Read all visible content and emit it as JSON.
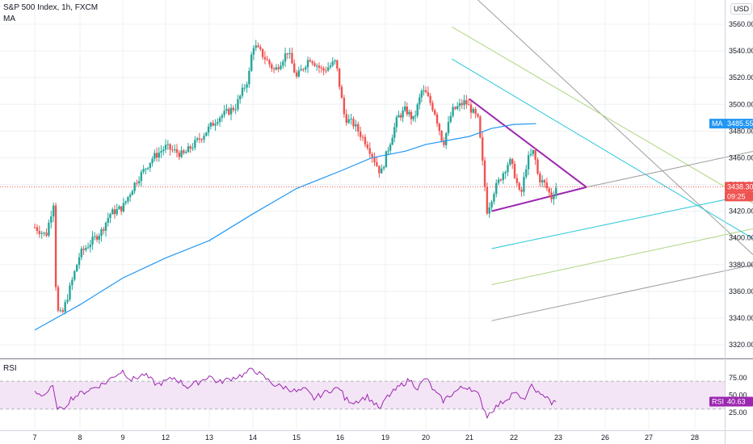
{
  "header": {
    "title": "S&P 500 Index, 1h, FXCM",
    "ma_label": "MA",
    "rsi_label": "RSI",
    "currency": "USD"
  },
  "colors": {
    "bull": "#26a69a",
    "bear": "#ef5350",
    "ma": "#2196f3",
    "rsi": "#9c27b0",
    "rsi_band": "#f3e5f5",
    "triangle": "#9c27b0",
    "ch_gray": "#9e9e9e",
    "ch_lime": "#aed581",
    "ch_teal": "#26c6da",
    "price_tag": "#ef5350",
    "ma_tag": "#2196f3"
  },
  "chart_data": [
    {
      "type": "candlestick",
      "title": "S&P 500 Index, 1h, FXCM",
      "x_axis": {
        "ticks": [
          "7",
          "8",
          "9",
          "12",
          "13",
          "14",
          "15",
          "16",
          "19",
          "20",
          "21",
          "22",
          "23",
          "26",
          "27",
          "28"
        ]
      },
      "y_axis": {
        "ticks": [
          3320,
          3340,
          3360,
          3380,
          3400,
          3420,
          3440,
          3460,
          3480,
          3500,
          3520,
          3540,
          3560
        ],
        "range": [
          3313,
          3578
        ]
      },
      "price_path": [
        [
          0.0,
          3408
        ],
        [
          0.25,
          3402
        ],
        [
          0.45,
          3432
        ],
        [
          0.47,
          3346
        ],
        [
          0.6,
          3342
        ],
        [
          0.8,
          3365
        ],
        [
          1.0,
          3388
        ],
        [
          1.2,
          3395
        ],
        [
          1.5,
          3405
        ],
        [
          1.7,
          3418
        ],
        [
          2.0,
          3423
        ],
        [
          2.3,
          3442
        ],
        [
          2.7,
          3460
        ],
        [
          3.0,
          3468
        ],
        [
          3.4,
          3462
        ],
        [
          3.8,
          3475
        ],
        [
          4.2,
          3490
        ],
        [
          4.6,
          3498
        ],
        [
          4.9,
          3520
        ],
        [
          5.0,
          3545
        ],
        [
          5.2,
          3538
        ],
        [
          5.5,
          3525
        ],
        [
          5.8,
          3540
        ],
        [
          6.0,
          3520
        ],
        [
          6.3,
          3535
        ],
        [
          6.6,
          3525
        ],
        [
          6.9,
          3532
        ],
        [
          7.1,
          3490
        ],
        [
          7.3,
          3485
        ],
        [
          7.6,
          3470
        ],
        [
          7.9,
          3448
        ],
        [
          8.0,
          3460
        ],
        [
          8.3,
          3490
        ],
        [
          8.5,
          3496
        ],
        [
          8.7,
          3488
        ],
        [
          8.9,
          3510
        ],
        [
          9.0,
          3508
        ],
        [
          9.2,
          3495
        ],
        [
          9.4,
          3470
        ],
        [
          9.6,
          3495
        ],
        [
          9.9,
          3502
        ],
        [
          10.0,
          3498
        ],
        [
          10.2,
          3488
        ],
        [
          10.4,
          3420
        ],
        [
          10.55,
          3435
        ],
        [
          10.7,
          3445
        ],
        [
          10.9,
          3458
        ],
        [
          11.0,
          3450
        ],
        [
          11.15,
          3430
        ],
        [
          11.3,
          3458
        ],
        [
          11.45,
          3465
        ],
        [
          11.55,
          3445
        ],
        [
          11.7,
          3440
        ],
        [
          11.85,
          3430
        ],
        [
          11.95,
          3438
        ]
      ],
      "candle_count": 232,
      "last_price": "3438.30",
      "countdown": "09:25",
      "ma": {
        "label": "MA",
        "last_value": "3485.55",
        "points": [
          [
            0.0,
            3331
          ],
          [
            1.0,
            3350
          ],
          [
            2.0,
            3370
          ],
          [
            3.0,
            3385
          ],
          [
            4.0,
            3398
          ],
          [
            5.0,
            3418
          ],
          [
            6.0,
            3437
          ],
          [
            7.0,
            3450
          ],
          [
            7.7,
            3460
          ],
          [
            8.5,
            3465
          ],
          [
            9.0,
            3470
          ],
          [
            10.0,
            3476
          ],
          [
            10.5,
            3482
          ],
          [
            11.0,
            3485
          ],
          [
            11.5,
            3485.55
          ]
        ]
      },
      "drawings": {
        "triangle_upper": [
          [
            10.0,
            3504
          ],
          [
            12.6,
            3438
          ]
        ],
        "triangle_lower": [
          [
            10.5,
            3420
          ],
          [
            12.6,
            3438
          ]
        ],
        "triangle_extension": [
          [
            12.6,
            3438
          ],
          [
            17.5,
            3474
          ]
        ],
        "channel_up": [
          [
            10.5,
            3392,
            17.5,
            3442
          ],
          [
            10.5,
            3365,
            17.5,
            3416
          ],
          [
            10.5,
            3338,
            17.5,
            3389
          ]
        ],
        "channel_down": [
          [
            10.0,
            3584,
            17.5,
            3348
          ],
          [
            9.6,
            3558,
            17.5,
            3401
          ],
          [
            9.6,
            3534,
            17.5,
            3374
          ]
        ]
      }
    },
    {
      "type": "line",
      "title": "RSI",
      "y_axis": {
        "ticks": [
          25.0,
          50.0,
          75.0
        ],
        "range": [
          15,
          92
        ],
        "band": [
          30,
          70
        ]
      },
      "last_value": "40.63",
      "points": [
        [
          0.0,
          55
        ],
        [
          0.2,
          50
        ],
        [
          0.4,
          62
        ],
        [
          0.47,
          35
        ],
        [
          0.6,
          28
        ],
        [
          0.8,
          45
        ],
        [
          1.0,
          52
        ],
        [
          1.3,
          60
        ],
        [
          1.6,
          68
        ],
        [
          1.8,
          78
        ],
        [
          2.0,
          85
        ],
        [
          2.2,
          72
        ],
        [
          2.5,
          80
        ],
        [
          2.8,
          65
        ],
        [
          3.0,
          70
        ],
        [
          3.2,
          75
        ],
        [
          3.5,
          62
        ],
        [
          3.8,
          70
        ],
        [
          4.0,
          78
        ],
        [
          4.2,
          68
        ],
        [
          4.5,
          74
        ],
        [
          4.8,
          80
        ],
        [
          5.0,
          88
        ],
        [
          5.2,
          78
        ],
        [
          5.5,
          65
        ],
        [
          5.8,
          60
        ],
        [
          6.0,
          55
        ],
        [
          6.2,
          58
        ],
        [
          6.4,
          45
        ],
        [
          6.6,
          52
        ],
        [
          6.8,
          58
        ],
        [
          7.0,
          60
        ],
        [
          7.1,
          45
        ],
        [
          7.3,
          40
        ],
        [
          7.6,
          48
        ],
        [
          7.8,
          35
        ],
        [
          7.9,
          30
        ],
        [
          8.0,
          45
        ],
        [
          8.2,
          55
        ],
        [
          8.4,
          65
        ],
        [
          8.6,
          72
        ],
        [
          8.8,
          60
        ],
        [
          9.0,
          75
        ],
        [
          9.2,
          55
        ],
        [
          9.4,
          42
        ],
        [
          9.6,
          52
        ],
        [
          9.8,
          60
        ],
        [
          10.0,
          62
        ],
        [
          10.2,
          50
        ],
        [
          10.4,
          20
        ],
        [
          10.5,
          28
        ],
        [
          10.7,
          38
        ],
        [
          10.9,
          48
        ],
        [
          11.0,
          55
        ],
        [
          11.2,
          42
        ],
        [
          11.4,
          62
        ],
        [
          11.5,
          58
        ],
        [
          11.6,
          48
        ],
        [
          11.75,
          50
        ],
        [
          11.85,
          38
        ],
        [
          11.95,
          40.63
        ]
      ]
    }
  ]
}
